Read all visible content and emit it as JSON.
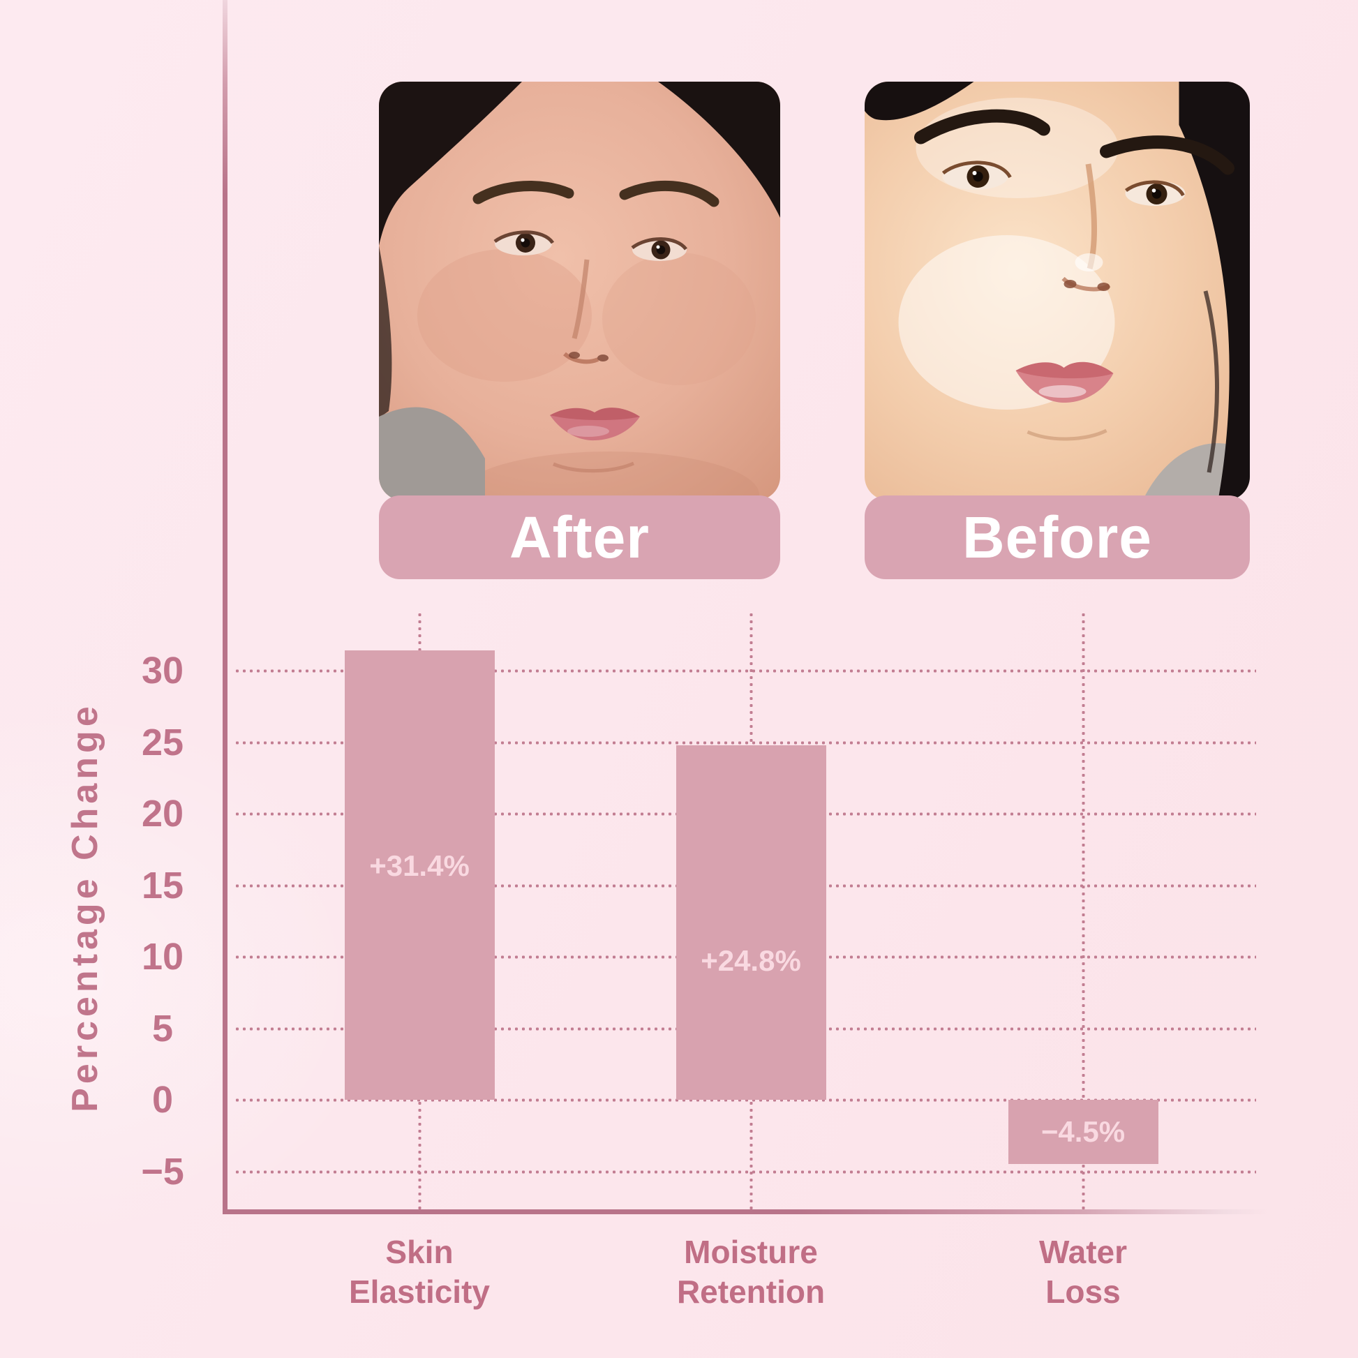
{
  "comparison": {
    "after": {
      "label": "After"
    },
    "before": {
      "label": "Before"
    }
  },
  "chart_data": {
    "type": "bar",
    "title": "",
    "categories": [
      "Skin Elasticity",
      "Moisture Retention",
      "Water Loss"
    ],
    "categories_lines": [
      [
        "Skin",
        "Elasticity"
      ],
      [
        "Moisture",
        "Retention"
      ],
      [
        "Water",
        "Loss"
      ]
    ],
    "values": [
      31.4,
      24.8,
      -4.5
    ],
    "bar_labels": [
      "+31.4%",
      "+24.8%",
      "−4.5%"
    ],
    "xlabel": "",
    "ylabel": "Percentage Change",
    "yticks": [
      30,
      25,
      20,
      15,
      10,
      5,
      0,
      -5
    ],
    "ytick_labels": [
      "30",
      "25",
      "20",
      "15",
      "10",
      "5",
      "0",
      "−5"
    ],
    "ylim": [
      -7.8,
      34
    ],
    "grid": "dotted",
    "legend": "none",
    "colors": {
      "background": "#fce7ed",
      "bar": "#d8a2af",
      "bar_label": "#f9d9e1",
      "banner": "#d9a4b2",
      "banner_text": "#ffffff",
      "grid_dots": "#c27e92",
      "axis_line": "#b87389",
      "tick_text": "#c0738a",
      "category_text": "#c06e85"
    }
  }
}
